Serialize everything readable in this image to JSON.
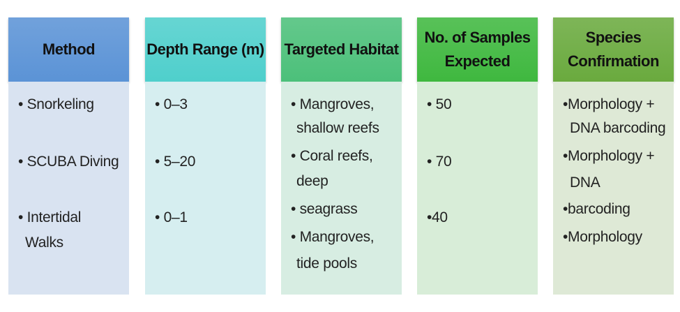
{
  "columns": [
    {
      "header": "Method",
      "color": "#5b93d6",
      "bg": "#d9e3f1",
      "lines": [
        "• Snorkeling",
        "• SCUBA Diving",
        "• Intertidal",
        "Walks"
      ]
    },
    {
      "header": "Depth Range (m)",
      "color": "#4fcfcc",
      "bg": "#d6eef0",
      "lines": [
        "• 0–3",
        "• 5–20",
        "• 0–1"
      ]
    },
    {
      "header": "Targeted Habitat",
      "color": "#4cc07a",
      "bg": "#d7ede2",
      "lines": [
        "• Mangroves,",
        "shallow reefs",
        "• Coral reefs,",
        "deep",
        "• seagrass",
        "• Mangroves,",
        "tide pools"
      ]
    },
    {
      "header": "No. of Samples Expected",
      "color": "#3fb83f",
      "bg": "#d8edd8",
      "lines": [
        "• 50",
        "• 70",
        "•40"
      ]
    },
    {
      "header": "Species Confirmation",
      "color": "#6aaa3e",
      "bg": "#dee9d6",
      "lines": [
        "•Morphology +",
        "DNA barcoding",
        "•Morphology +",
        "DNA",
        "•barcoding",
        "•Morphology"
      ]
    }
  ]
}
